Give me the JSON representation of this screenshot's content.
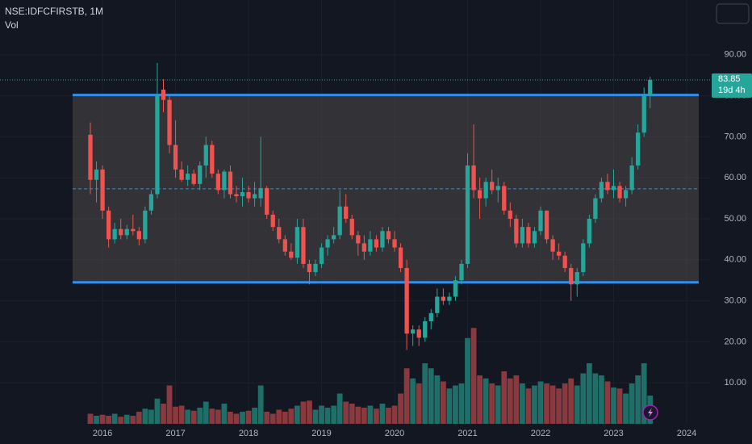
{
  "chart_data": {
    "type": "candlestick",
    "title": "NSE:IDFCFIRSTB, 1M",
    "volume_label": "Vol",
    "countdown": "19d 4h",
    "categories": [
      null,
      null,
      "2016",
      null,
      null,
      null,
      null,
      null,
      null,
      null,
      null,
      null,
      null,
      null,
      "2017",
      null,
      null,
      null,
      null,
      null,
      null,
      null,
      null,
      null,
      null,
      null,
      "2018",
      null,
      null,
      null,
      null,
      null,
      null,
      null,
      null,
      null,
      null,
      null,
      "2019",
      null,
      null,
      null,
      null,
      null,
      null,
      null,
      null,
      null,
      null,
      null,
      "2020",
      null,
      null,
      null,
      null,
      null,
      null,
      null,
      null,
      null,
      null,
      null,
      "2021",
      null,
      null,
      null,
      null,
      null,
      null,
      null,
      null,
      null,
      null,
      null,
      "2022",
      null,
      null,
      null,
      null,
      null,
      null,
      null,
      null,
      null,
      null,
      null,
      "2023",
      null,
      null,
      null,
      null,
      null,
      null,
      null,
      null,
      null,
      null,
      null,
      "2024"
    ],
    "open": [
      70.5,
      59.5,
      62,
      52,
      45,
      47.5,
      46,
      47.5,
      47,
      45,
      52,
      56,
      81.5,
      79,
      68,
      62,
      59.5,
      61,
      58.5,
      63,
      68,
      61,
      57,
      61.5,
      56,
      55.5,
      56.5,
      55,
      55,
      57.5,
      51,
      48,
      45,
      42,
      40.5,
      48,
      39,
      37,
      39,
      43,
      45,
      46,
      53,
      50,
      46,
      44,
      42,
      45,
      43,
      47,
      45,
      43,
      38,
      22,
      23,
      21,
      25,
      27,
      31,
      30,
      31,
      35,
      39,
      63,
      57,
      55,
      59,
      57,
      58,
      52,
      50,
      44,
      48,
      44,
      47,
      52,
      45,
      42,
      41,
      38,
      34,
      37,
      44,
      50,
      55,
      59,
      57,
      58,
      55,
      57,
      63,
      71,
      80,
      null,
      null,
      null,
      null,
      null,
      null
    ],
    "high": [
      73.5,
      64,
      63,
      53,
      49,
      50,
      48.5,
      51,
      48,
      53,
      57,
      88,
      84,
      80,
      74,
      64,
      63,
      62,
      64,
      70,
      69,
      62,
      62,
      63,
      58,
      60,
      58,
      59,
      70,
      58,
      52,
      50,
      46,
      44,
      50,
      50,
      40,
      40,
      44,
      46,
      48,
      57,
      56,
      51,
      47,
      46,
      47,
      46,
      48,
      48,
      47,
      44,
      40,
      24,
      24,
      26,
      28,
      33,
      33,
      32,
      36,
      40,
      66,
      73,
      60,
      60,
      62,
      60,
      59,
      54,
      51,
      50,
      49,
      48,
      53,
      52,
      46,
      44,
      42,
      39,
      38,
      45,
      51,
      56,
      60,
      61,
      62,
      59,
      58,
      65,
      73,
      82,
      84.6,
      null,
      null,
      null,
      null,
      null,
      null
    ],
    "low": [
      56,
      54,
      50,
      43,
      44,
      45,
      45,
      46,
      43.5,
      44,
      51,
      55,
      76,
      66,
      60,
      59,
      58,
      58,
      57,
      60,
      60,
      56,
      55,
      55,
      54,
      53,
      54,
      53,
      53,
      50,
      47,
      44,
      41,
      40,
      39,
      38,
      34,
      36,
      38,
      41,
      44,
      45,
      49,
      45,
      41,
      40,
      41,
      42,
      42,
      44,
      42,
      37,
      18,
      19,
      19,
      20,
      23,
      26,
      29,
      29,
      30,
      34,
      38,
      55,
      50,
      53,
      56,
      54,
      51,
      48,
      43,
      43,
      43,
      43,
      46,
      44,
      40,
      40,
      37,
      30,
      31,
      36,
      43,
      49,
      54,
      56,
      55,
      54,
      53,
      56,
      62,
      70,
      77,
      null,
      null,
      null,
      null,
      null,
      null
    ],
    "close": [
      59.5,
      62,
      52,
      45,
      47.5,
      46,
      47.5,
      47,
      45,
      52,
      56,
      80,
      79,
      68,
      62,
      59.5,
      61,
      58.5,
      63,
      68,
      61,
      57,
      61.5,
      56,
      55.5,
      56.5,
      55,
      56,
      57.5,
      51,
      48,
      45,
      42,
      40.5,
      48,
      39,
      37,
      39,
      43,
      45,
      46,
      53,
      50,
      46,
      44,
      42,
      45,
      43,
      47,
      45,
      43,
      38,
      22,
      23,
      21,
      25,
      27,
      31,
      30,
      31,
      35,
      39,
      63,
      57,
      55,
      59,
      57,
      58,
      52,
      50,
      44,
      48,
      44,
      47,
      52,
      45,
      42,
      41,
      38,
      34,
      37,
      44,
      50,
      55,
      59,
      57,
      58,
      55,
      57,
      63,
      71,
      80,
      83.85,
      null,
      null,
      null,
      null,
      null,
      null
    ],
    "volume": [
      10,
      8,
      9,
      8,
      10,
      7,
      9,
      8,
      12,
      15,
      14,
      25,
      20,
      38,
      17,
      18,
      14,
      13,
      16,
      22,
      15,
      14,
      20,
      12,
      10,
      12,
      13,
      16,
      38,
      12,
      10,
      14,
      12,
      15,
      18,
      22,
      23,
      14,
      18,
      16,
      18,
      30,
      22,
      20,
      17,
      16,
      18,
      15,
      20,
      16,
      18,
      30,
      55,
      45,
      40,
      60,
      55,
      48,
      42,
      35,
      38,
      40,
      85,
      95,
      48,
      45,
      40,
      38,
      52,
      45,
      48,
      40,
      35,
      38,
      42,
      40,
      38,
      35,
      40,
      45,
      38,
      50,
      60,
      50,
      48,
      42,
      36,
      35,
      30,
      40,
      48,
      60,
      28,
      null,
      null,
      null,
      null,
      null,
      null
    ],
    "up_color": "#26a69a",
    "down_color": "#ef5350",
    "volume_up_color": "#1f6e67",
    "volume_down_color": "#8a3a3e",
    "ylim": [
      0,
      103.35
    ],
    "vlim": [
      0,
      420
    ],
    "yticks": [
      {
        "value": 10,
        "label": "10.00"
      },
      {
        "value": 20,
        "label": "20.00"
      },
      {
        "value": 30,
        "label": "30.00"
      },
      {
        "value": 40,
        "label": "40.00"
      },
      {
        "value": 50,
        "label": "50.00"
      },
      {
        "value": 60,
        "label": "60.00"
      },
      {
        "value": 70,
        "label": "70.00"
      },
      {
        "value": 80,
        "label": "80.00"
      },
      {
        "value": 90,
        "label": "90.00"
      }
    ],
    "range_box": {
      "top": 80.2,
      "bottom": 34.5,
      "middle": 57.3,
      "color": "#2f8fee"
    },
    "grid": true
  }
}
